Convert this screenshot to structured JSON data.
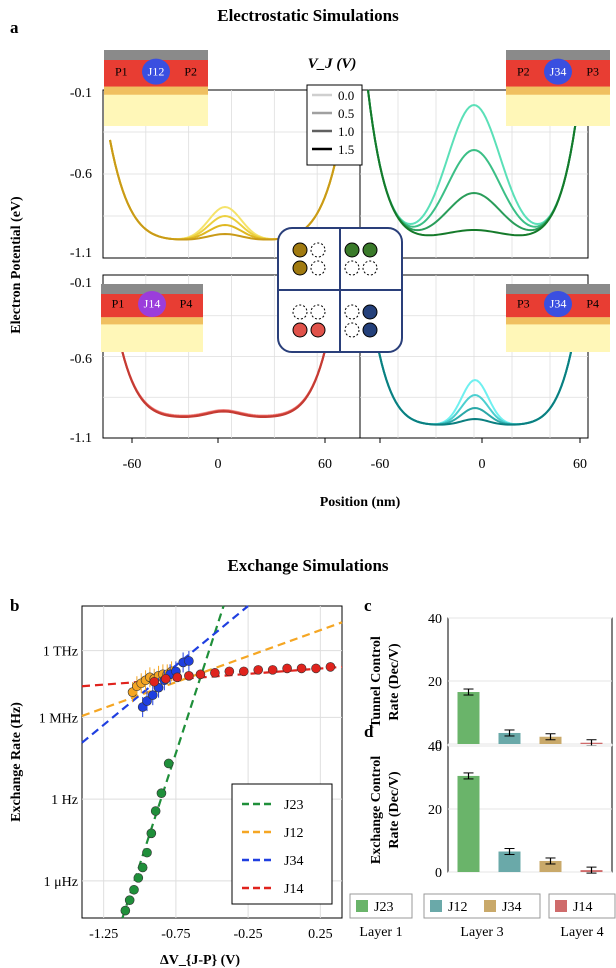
{
  "section_a_title": "Electrostatic Simulations",
  "section_b_title": "Exchange Simulations",
  "panel_letters": {
    "a": "a",
    "b": "b",
    "c": "c",
    "d": "d"
  },
  "colors": {
    "J12": "#e6b400",
    "J34_sim": "#00a38a",
    "J14": "#d9423a",
    "J34b": "#0b8f8f",
    "green": "#1f8f3a",
    "orange": "#f5a623",
    "blue": "#1f3fe0",
    "red": "#e0231d",
    "bar_green": "#6ab46a",
    "bar_teal": "#6aa9a9",
    "bar_tan": "#c9a96a",
    "bar_red": "#cf6b6b"
  },
  "chart_data": [
    {
      "type": "line",
      "panel": "a-top-left",
      "inset_labels": [
        "P1",
        "J12",
        "P2"
      ],
      "xlabel": "Position (nm)",
      "ylabel": "Electron Potential (eV)",
      "ylim": [
        -1.1,
        -0.1
      ],
      "yticks": [
        "-0.1",
        "-0.6",
        "-1.1"
      ],
      "legend_title": "V_J (V)",
      "legend_entries": [
        "0.0",
        "0.5",
        "1.0",
        "1.5"
      ],
      "series_note": "double well, barrier lowered with V_J"
    },
    {
      "type": "line",
      "panel": "a-top-right",
      "inset_labels": [
        "P2",
        "J34",
        "P3"
      ]
    },
    {
      "type": "line",
      "panel": "a-bottom-left",
      "inset_labels": [
        "P1",
        "J14",
        "P4"
      ],
      "xticks": [
        "-60",
        "0",
        "60"
      ],
      "ylim": [
        -1.1,
        -0.1
      ],
      "yticks": [
        "-0.1",
        "-0.6",
        "-1.1"
      ]
    },
    {
      "type": "line",
      "panel": "a-bottom-right",
      "inset_labels": [
        "P3",
        "J34",
        "P4"
      ],
      "xticks": [
        "-60",
        "0",
        "60"
      ]
    },
    {
      "type": "scatter",
      "panel": "b",
      "xlabel": "ΔV_{J-P} (V)",
      "ylabel": "Exchange Rate (Hz)",
      "xticks": [
        "-1.25",
        "-0.75",
        "-0.25",
        "0.25"
      ],
      "yticks": [
        "1 THz",
        "1 MHz",
        "1 Hz",
        "1 μHz"
      ],
      "series": [
        {
          "name": "J23",
          "x": [
            -1.1,
            -1.07,
            -1.04,
            -1.01,
            -0.98,
            -0.95,
            -0.92,
            -0.89,
            -0.85,
            -0.8
          ],
          "y": [
            -8.5,
            -7.8,
            -7.1,
            -6.3,
            -5.6,
            -4.6,
            -3.3,
            -1.8,
            -0.6,
            1.4
          ]
        },
        {
          "name": "J12",
          "x": [
            -1.05,
            -1.02,
            -0.99,
            -0.96,
            -0.93,
            -0.9,
            -0.87,
            -0.84,
            -0.81,
            -0.78
          ],
          "y": [
            6.2,
            6.6,
            6.8,
            7.0,
            7.2,
            7.1,
            7.3,
            7.4,
            7.4,
            7.6
          ]
        },
        {
          "name": "J34",
          "x": [
            -0.98,
            -0.95,
            -0.91,
            -0.87,
            -0.83,
            -0.79,
            -0.75,
            -0.7,
            -0.66
          ],
          "y": [
            5.2,
            5.6,
            6.0,
            6.5,
            7.0,
            7.4,
            7.6,
            8.2,
            8.3
          ]
        },
        {
          "name": "J14",
          "x": [
            -0.9,
            -0.82,
            -0.74,
            -0.66,
            -0.58,
            -0.48,
            -0.38,
            -0.28,
            -0.18,
            -0.08,
            0.02,
            0.12,
            0.22,
            0.32
          ],
          "y": [
            6.9,
            7.1,
            7.2,
            7.3,
            7.4,
            7.5,
            7.6,
            7.6,
            7.7,
            7.7,
            7.8,
            7.8,
            7.8,
            7.9
          ]
        }
      ]
    },
    {
      "type": "bar",
      "panel": "c",
      "ylabel": "Tunnel Control Rate (Dec/V)",
      "ylim": [
        0,
        40
      ],
      "yticks": [
        "0",
        "20",
        "40"
      ],
      "categories": [
        "J23",
        "J12",
        "J34",
        "J14"
      ],
      "values": [
        16.5,
        3.5,
        2.3,
        0.4
      ]
    },
    {
      "type": "bar",
      "panel": "d",
      "ylabel": "Exchange Control Rate (Dec/V)",
      "ylim": [
        0,
        40
      ],
      "yticks": [
        "0",
        "20",
        "40"
      ],
      "categories": [
        "J23",
        "J12",
        "J34",
        "J14"
      ],
      "values": [
        30.5,
        6.5,
        3.5,
        0.6
      ]
    }
  ],
  "bottom_legend": [
    {
      "label": "J23",
      "layer": "Layer 1"
    },
    {
      "label": "J12",
      "layer": "Layer 3"
    },
    {
      "label": "J34",
      "layer": "Layer 3"
    },
    {
      "label": "J14",
      "layer": "Layer 4"
    }
  ],
  "layers": [
    "Layer 1",
    "Layer 3",
    "Layer 4"
  ]
}
